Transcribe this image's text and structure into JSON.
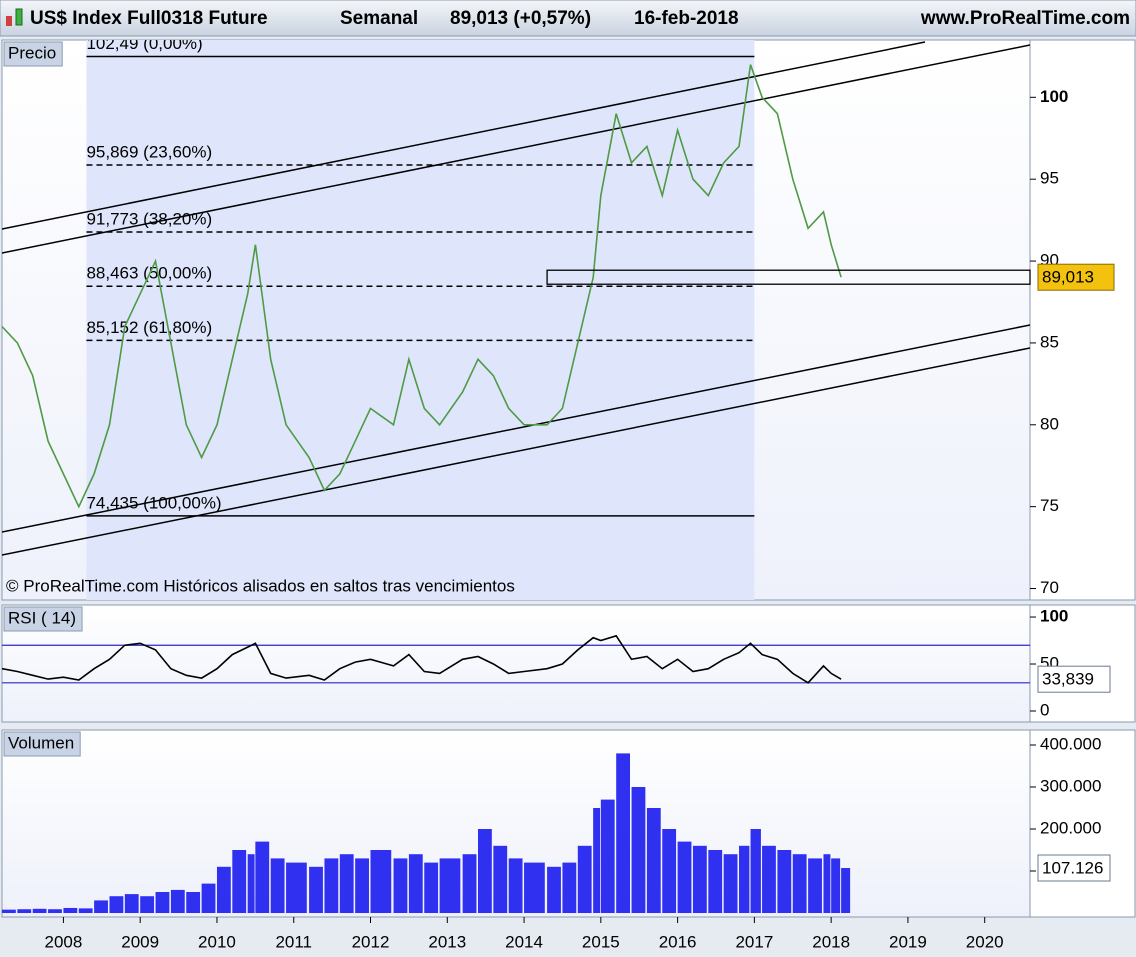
{
  "header": {
    "symbol": "US$ Index Full0318 Future",
    "period": "Semanal",
    "quote": "89,013 (+0,57%)",
    "date": "16-feb-2018",
    "site": "www.ProRealTime.com",
    "note": "© ProRealTime.com  Históricos alisados en saltos tras vencimientos"
  },
  "chart_data": [
    {
      "type": "line",
      "title": "Precio",
      "color": "#4f9a45",
      "x": [
        2007.2,
        2007.4,
        2007.6,
        2007.8,
        2008.0,
        2008.2,
        2008.4,
        2008.6,
        2008.8,
        2009.0,
        2009.2,
        2009.4,
        2009.6,
        2009.8,
        2010.0,
        2010.2,
        2010.4,
        2010.5,
        2010.7,
        2010.9,
        2011.2,
        2011.4,
        2011.6,
        2011.8,
        2012.0,
        2012.3,
        2012.5,
        2012.7,
        2012.9,
        2013.2,
        2013.4,
        2013.6,
        2013.8,
        2014.0,
        2014.3,
        2014.5,
        2014.7,
        2014.9,
        2015.0,
        2015.2,
        2015.4,
        2015.6,
        2015.8,
        2016.0,
        2016.2,
        2016.4,
        2016.6,
        2016.8,
        2016.95,
        2017.1,
        2017.3,
        2017.5,
        2017.7,
        2017.9,
        2018.0,
        2018.13
      ],
      "values": [
        86,
        85,
        83,
        79,
        77,
        75,
        77,
        80,
        86,
        88,
        90,
        85,
        80,
        78,
        80,
        84,
        88,
        91,
        84,
        80,
        78,
        76,
        77,
        79,
        81,
        80,
        84,
        81,
        80,
        82,
        84,
        83,
        81,
        80,
        80,
        81,
        85,
        89,
        94,
        99,
        96,
        97,
        94,
        98,
        95,
        94,
        96,
        97,
        102,
        100,
        99,
        95,
        92,
        93,
        91,
        89.013
      ],
      "xlim": [
        2007.2,
        2020.59
      ],
      "ylim": [
        69.3,
        103.5
      ],
      "yticks": [
        70,
        75,
        80,
        85,
        90,
        95,
        100
      ],
      "levels": [
        {
          "value": 102.49,
          "label": "102,49 (0,00%)"
        },
        {
          "value": 95.869,
          "label": "95,869 (23,60%)"
        },
        {
          "value": 91.773,
          "label": "91,773 (38,20%)"
        },
        {
          "value": 88.463,
          "label": "88,463 (50,00%)"
        },
        {
          "value": 85.152,
          "label": "85,152 (61,80%)"
        },
        {
          "value": 74.435,
          "label": "74,435 (100,00%)"
        }
      ],
      "level_x": [
        2008.3,
        2017.0
      ],
      "current": {
        "value": 89.013,
        "label": "89,013"
      }
    },
    {
      "type": "line",
      "title": "RSI ( 14)",
      "color": "#000000",
      "x": [
        2007.2,
        2007.4,
        2007.6,
        2007.8,
        2008.0,
        2008.2,
        2008.4,
        2008.6,
        2008.8,
        2009.0,
        2009.2,
        2009.4,
        2009.6,
        2009.8,
        2010.0,
        2010.2,
        2010.4,
        2010.5,
        2010.7,
        2010.9,
        2011.2,
        2011.4,
        2011.6,
        2011.8,
        2012.0,
        2012.3,
        2012.5,
        2012.7,
        2012.9,
        2013.2,
        2013.4,
        2013.6,
        2013.8,
        2014.0,
        2014.3,
        2014.5,
        2014.7,
        2014.9,
        2015.0,
        2015.2,
        2015.4,
        2015.6,
        2015.8,
        2016.0,
        2016.2,
        2016.4,
        2016.6,
        2016.8,
        2016.95,
        2017.1,
        2017.3,
        2017.5,
        2017.7,
        2017.9,
        2018.0,
        2018.13
      ],
      "values": [
        45,
        42,
        38,
        34,
        36,
        33,
        45,
        55,
        70,
        72,
        65,
        45,
        38,
        35,
        45,
        60,
        68,
        72,
        40,
        35,
        38,
        33,
        45,
        52,
        55,
        48,
        60,
        42,
        40,
        55,
        58,
        50,
        40,
        42,
        45,
        50,
        65,
        78,
        75,
        80,
        55,
        58,
        45,
        55,
        42,
        45,
        55,
        62,
        72,
        60,
        55,
        40,
        30,
        48,
        40,
        33.839
      ],
      "xlim": [
        2007.2,
        2020.59
      ],
      "ylim": [
        -11.7,
        112.8
      ],
      "yticks": [
        0,
        50,
        100
      ],
      "levels": [
        70,
        30
      ],
      "level_color": "#2828c8",
      "current": {
        "value": 33.839,
        "label": "33,839"
      }
    },
    {
      "type": "bar",
      "title": "Volumen",
      "color": "#3030f0",
      "x": [
        2007.2,
        2007.4,
        2007.6,
        2007.8,
        2008.0,
        2008.2,
        2008.4,
        2008.6,
        2008.8,
        2009.0,
        2009.2,
        2009.4,
        2009.6,
        2009.8,
        2010.0,
        2010.2,
        2010.4,
        2010.5,
        2010.7,
        2010.9,
        2011.2,
        2011.4,
        2011.6,
        2011.8,
        2012.0,
        2012.3,
        2012.5,
        2012.7,
        2012.9,
        2013.2,
        2013.4,
        2013.6,
        2013.8,
        2014.0,
        2014.3,
        2014.5,
        2014.7,
        2014.9,
        2015.0,
        2015.2,
        2015.4,
        2015.6,
        2015.8,
        2016.0,
        2016.2,
        2016.4,
        2016.6,
        2016.8,
        2016.95,
        2017.1,
        2017.3,
        2017.5,
        2017.7,
        2017.9,
        2018.0,
        2018.13
      ],
      "values": [
        8000,
        9000,
        10000,
        9000,
        12000,
        11000,
        30000,
        40000,
        45000,
        40000,
        50000,
        55000,
        50000,
        70000,
        110000,
        150000,
        140000,
        170000,
        130000,
        120000,
        110000,
        130000,
        140000,
        130000,
        150000,
        130000,
        140000,
        120000,
        130000,
        140000,
        200000,
        160000,
        130000,
        120000,
        110000,
        120000,
        160000,
        250000,
        270000,
        380000,
        300000,
        250000,
        200000,
        170000,
        160000,
        150000,
        140000,
        160000,
        200000,
        160000,
        150000,
        140000,
        130000,
        140000,
        130000,
        107126
      ],
      "xlim": [
        2007.2,
        2020.59
      ],
      "ylim": [
        -9500,
        435700
      ],
      "yticks": [
        {
          "value": 100000,
          "label": "100.000"
        },
        {
          "value": 200000,
          "label": "200.000"
        },
        {
          "value": 300000,
          "label": "300.000"
        },
        {
          "value": 400000,
          "label": "400.000"
        }
      ],
      "xticks": [
        2008,
        2009,
        2010,
        2011,
        2012,
        2013,
        2014,
        2015,
        2016,
        2017,
        2018,
        2019,
        2020
      ],
      "current": {
        "value": 107126,
        "label": "107.126"
      }
    }
  ]
}
